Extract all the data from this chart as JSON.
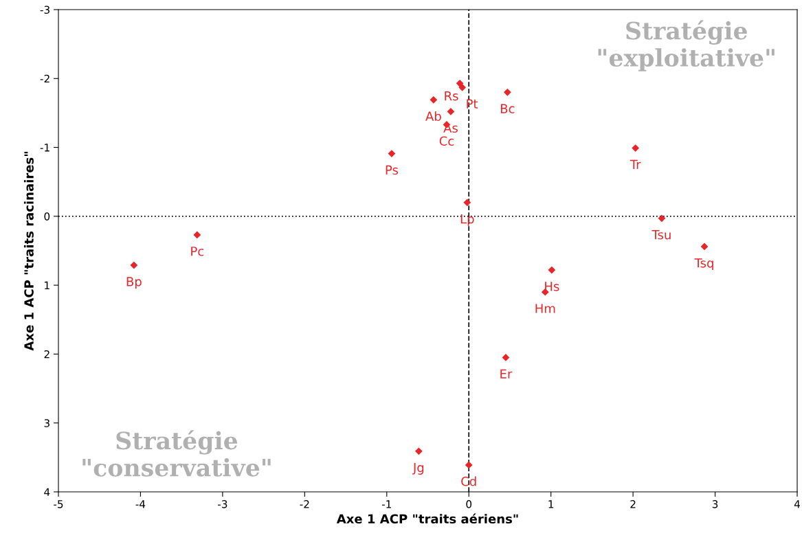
{
  "chart_data": {
    "type": "scatter",
    "xlabel": "Axe 1 ACP \"traits aériens\"",
    "ylabel": "Axe 1 ACP \"traits racinaires\"",
    "xlim": [
      -5,
      4
    ],
    "xticks": [
      -5,
      -4,
      -3,
      -2,
      -1,
      0,
      1,
      2,
      3,
      4
    ],
    "ylim": [
      4,
      -3
    ],
    "yticks": [
      -3,
      -2,
      -1,
      0,
      1,
      2,
      3,
      4
    ],
    "grid": false,
    "legend": false,
    "marker": "diamond",
    "series": [
      {
        "color": "#e8262a",
        "x": [
          -0.11,
          -0.08,
          -0.43,
          -0.22,
          -0.27,
          -0.94,
          0.47,
          -0.02,
          1.01,
          0.93,
          0.45,
          -0.61,
          0.0,
          2.03,
          2.35,
          2.87,
          -3.31,
          -4.08
        ],
        "values": [
          -1.93,
          -1.87,
          -1.69,
          -1.52,
          -1.33,
          -0.91,
          -1.8,
          -0.2,
          0.78,
          1.1,
          2.05,
          3.41,
          3.61,
          -0.99,
          0.03,
          0.44,
          0.27,
          0.71
        ]
      }
    ],
    "ref_lines": [
      {
        "axis": "x",
        "value": 0,
        "color": "#000000",
        "line_style": "dashed"
      },
      {
        "axis": "y",
        "value": 0,
        "color": "#000000",
        "line_style": "dotted"
      }
    ],
    "annotations": [
      "Stratégie\n\"exploitative\"",
      "Stratégie\n\"conservative\"",
      {
        "text": "Rs",
        "x": -0.11,
        "y": -1.93
      },
      {
        "text": "Pt",
        "x": -0.08,
        "y": -1.87
      },
      {
        "text": "Ab",
        "x": -0.43,
        "y": -1.69
      },
      {
        "text": "As",
        "x": -0.22,
        "y": -1.52
      },
      {
        "text": "Cc",
        "x": -0.27,
        "y": -1.33
      },
      {
        "text": "Ps",
        "x": -0.94,
        "y": -0.91
      },
      {
        "text": "Bc",
        "x": 0.47,
        "y": -1.8
      },
      {
        "text": "Lp",
        "x": -0.02,
        "y": -0.2
      },
      {
        "text": "Hs",
        "x": 1.01,
        "y": 0.78
      },
      {
        "text": "Hm",
        "x": 0.93,
        "y": 1.1
      },
      {
        "text": "Er",
        "x": 0.45,
        "y": 2.05
      },
      {
        "text": "Jg",
        "x": -0.61,
        "y": 3.41
      },
      {
        "text": "Cd",
        "x": 0.0,
        "y": 3.61
      },
      {
        "text": "Tr",
        "x": 2.03,
        "y": -0.99
      },
      {
        "text": "Tsu",
        "x": 2.35,
        "y": 0.03
      },
      {
        "text": "Tsq",
        "x": 2.87,
        "y": 0.44
      },
      {
        "text": "Pc",
        "x": -3.31,
        "y": 0.27
      },
      {
        "text": "Bp",
        "x": -4.08,
        "y": 0.71
      }
    ]
  }
}
